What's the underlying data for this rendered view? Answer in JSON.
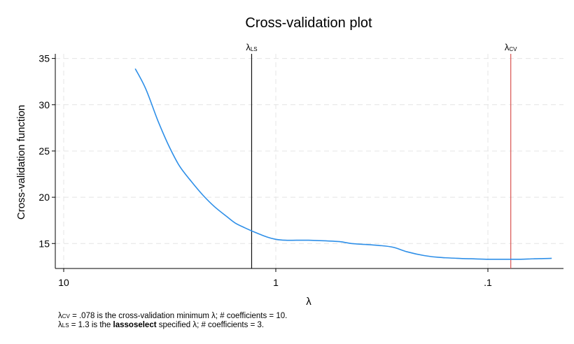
{
  "chart_data": {
    "type": "line",
    "title": "Cross-validation plot",
    "xlabel": "λ",
    "ylabel": "Cross-validation function",
    "x_scale": "log-reversed",
    "xlim": [
      10,
      0.045
    ],
    "ylim": [
      12.3,
      35.5
    ],
    "x_ticks": [
      10,
      1,
      0.1
    ],
    "x_tick_labels": [
      "10",
      "1",
      ".1"
    ],
    "y_ticks": [
      15,
      20,
      25,
      30,
      35
    ],
    "y_tick_labels": [
      "15",
      "20",
      "25",
      "30",
      "35"
    ],
    "grid": true,
    "series": [
      {
        "color": "#2e8fe8",
        "x": [
          4.6,
          4.1,
          3.6,
          3.2,
          2.85,
          2.5,
          2.2,
          1.95,
          1.7,
          1.55,
          1.4,
          1.25,
          1.1,
          1.0,
          0.9,
          0.8,
          0.7,
          0.6,
          0.5,
          0.44,
          0.38,
          0.33,
          0.28,
          0.24,
          0.2,
          0.17,
          0.14,
          0.12,
          0.1,
          0.09,
          0.078,
          0.07,
          0.06,
          0.05
        ],
        "y": [
          33.9,
          31.7,
          28.3,
          25.6,
          23.4,
          21.7,
          20.2,
          19.0,
          17.9,
          17.2,
          16.7,
          16.2,
          15.7,
          15.45,
          15.35,
          15.35,
          15.35,
          15.3,
          15.2,
          15.0,
          14.9,
          14.8,
          14.6,
          14.1,
          13.7,
          13.5,
          13.4,
          13.35,
          13.3,
          13.3,
          13.3,
          13.3,
          13.35,
          13.4
        ]
      }
    ],
    "reference_lines": [
      {
        "label": "λ",
        "sub": "LS",
        "x": 1.3,
        "color": "#111111"
      },
      {
        "label": "λ",
        "sub": "CV",
        "x": 0.078,
        "color": "#d9534f"
      }
    ]
  },
  "notes": {
    "cv": {
      "lambda": "λ",
      "sub": "CV",
      "text": " = .078 is the cross-validation minimum λ; # coefficients = 10."
    },
    "ls": {
      "lambda": "λ",
      "sub": "LS",
      "text_before": " = 1.3 is the ",
      "bold": "lassoselect",
      "text_after": " specified λ; # coefficients = 3."
    }
  }
}
